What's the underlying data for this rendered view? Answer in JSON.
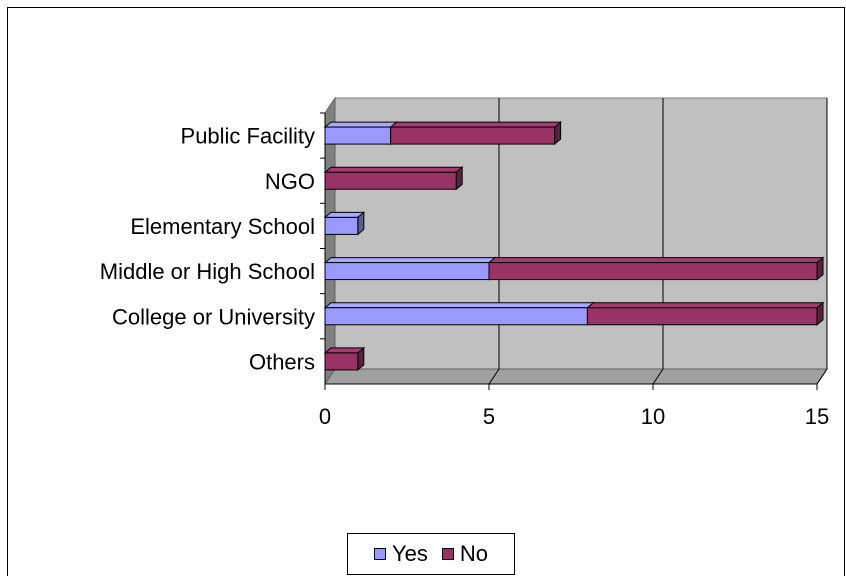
{
  "chart_data": {
    "type": "bar",
    "orientation": "horizontal",
    "stacked": true,
    "style": "3d",
    "categories": [
      "Public Facility",
      "NGO",
      "Elementary School",
      "Middle or High School",
      "College or University",
      "Others"
    ],
    "series": [
      {
        "name": "Yes",
        "color": "#9999ff",
        "values": [
          2,
          0,
          1,
          5,
          8,
          0
        ]
      },
      {
        "name": "No",
        "color": "#993366",
        "values": [
          5,
          4,
          0,
          10,
          7,
          1
        ]
      }
    ],
    "xlim": [
      0,
      15
    ],
    "xticks": [
      "0",
      "5",
      "10",
      "15"
    ],
    "grid": true,
    "plot_background": "#c0c0c0",
    "legend_position": "bottom"
  }
}
